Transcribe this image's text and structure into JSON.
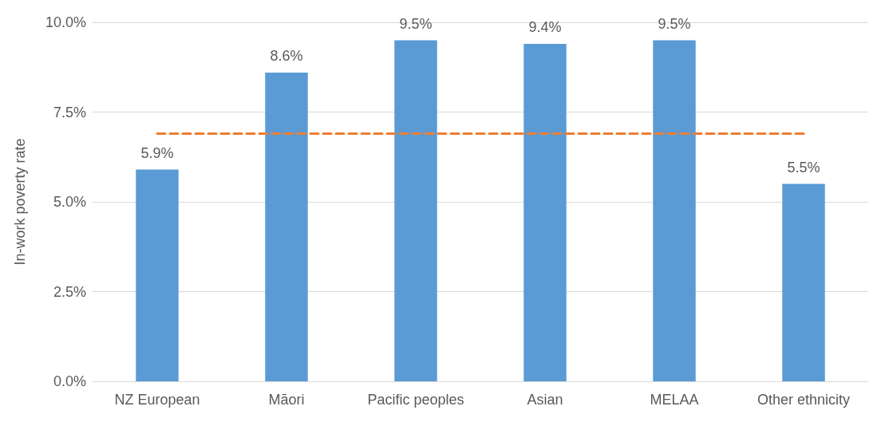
{
  "chart_data": {
    "type": "bar",
    "ylabel": "In-work poverty rate",
    "categories": [
      "NZ European",
      "Māori",
      "Pacific peoples",
      "Asian",
      "MELAA",
      "Other ethnicity"
    ],
    "series": [
      {
        "color": "#5b9bd5",
        "values": [
          5.9,
          8.6,
          9.5,
          9.4,
          9.5,
          5.5
        ],
        "value_labels": [
          "5.9%",
          "8.6%",
          "9.5%",
          "9.4%",
          "9.5%",
          "5.5%"
        ]
      },
      {
        "type": "line",
        "color": "#ed7d31",
        "values": [
          6.9,
          6.9,
          6.9,
          6.9,
          6.9,
          6.9
        ],
        "line_style": "dashed",
        "marker": "none"
      }
    ],
    "ylim": [
      0,
      10
    ],
    "yticks": [
      {
        "value": 0,
        "label": "0.0%"
      },
      {
        "value": 2.5,
        "label": "2.5%"
      },
      {
        "value": 5,
        "label": "5.0%"
      },
      {
        "value": 7.5,
        "label": "7.5%"
      },
      {
        "value": 10,
        "label": "10.0%"
      }
    ],
    "grid": "y"
  }
}
